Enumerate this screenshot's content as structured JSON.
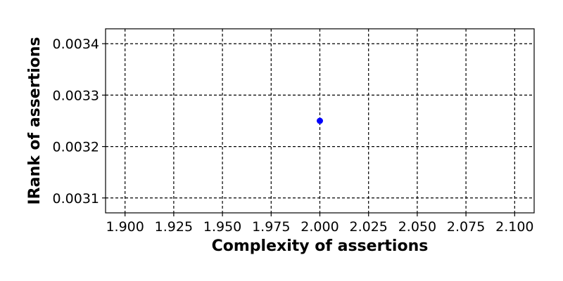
{
  "chart_data": {
    "type": "scatter",
    "title": "",
    "xlabel": "Complexity of assertions",
    "ylabel": "IRank of assertions",
    "xlim": [
      1.89,
      2.11
    ],
    "ylim": [
      0.003071,
      0.003429
    ],
    "x_ticks": [
      1.9,
      1.925,
      1.95,
      1.975,
      2.0,
      2.025,
      2.05,
      2.075,
      2.1
    ],
    "x_tick_labels": [
      "1.900",
      "1.925",
      "1.950",
      "1.975",
      "2.000",
      "2.025",
      "2.050",
      "2.075",
      "2.100"
    ],
    "y_ticks": [
      0.0031,
      0.0032,
      0.0033,
      0.0034
    ],
    "y_tick_labels": [
      "0.0031",
      "0.0032",
      "0.0033",
      "0.0034"
    ],
    "grid": true,
    "grid_style": "dashed",
    "series": [
      {
        "color": "#0000ff",
        "marker": "circle",
        "points": [
          {
            "x": 2.0,
            "y": 0.00325
          }
        ]
      }
    ]
  }
}
